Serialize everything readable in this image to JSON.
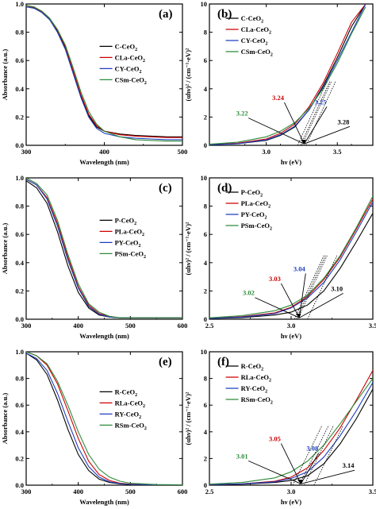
{
  "chart_data": [
    {
      "type": "line",
      "panel_label": "(a)",
      "xlabel": "Wavelength (nm)",
      "ylabel": "Absorbance (a.u.)",
      "xlim": [
        300,
        500
      ],
      "ylim": [
        0,
        1.0
      ],
      "xticks": [
        300,
        400,
        500
      ],
      "yticks": [
        0.0,
        0.2,
        0.4,
        0.6,
        0.8,
        1.0
      ],
      "legend_position": "middle-right",
      "series": [
        {
          "name": "C-CeO2",
          "name_base": "C-CeO",
          "name_sub": "2",
          "color": "#000000",
          "x": [
            300,
            310,
            320,
            330,
            340,
            350,
            360,
            370,
            380,
            390,
            400,
            420,
            440,
            460,
            480,
            500
          ],
          "y": [
            0.98,
            0.97,
            0.94,
            0.89,
            0.81,
            0.69,
            0.52,
            0.35,
            0.21,
            0.13,
            0.1,
            0.08,
            0.07,
            0.065,
            0.06,
            0.06
          ]
        },
        {
          "name": "CLa-CeO2",
          "name_base": "CLa-CeO",
          "name_sub": "2",
          "color": "#cc0000",
          "x": [
            300,
            310,
            320,
            330,
            340,
            350,
            360,
            370,
            380,
            390,
            400,
            420,
            440,
            460,
            480,
            500
          ],
          "y": [
            0.99,
            0.975,
            0.945,
            0.895,
            0.815,
            0.7,
            0.53,
            0.36,
            0.22,
            0.14,
            0.1,
            0.075,
            0.065,
            0.06,
            0.055,
            0.055
          ]
        },
        {
          "name": "CY-CeO2",
          "name_base": "CY-CeO",
          "name_sub": "2",
          "color": "#1f3fbf",
          "x": [
            300,
            310,
            320,
            330,
            340,
            350,
            360,
            370,
            380,
            390,
            400,
            420,
            440,
            460,
            480,
            500
          ],
          "y": [
            0.98,
            0.97,
            0.94,
            0.89,
            0.8,
            0.68,
            0.51,
            0.34,
            0.2,
            0.12,
            0.085,
            0.06,
            0.05,
            0.045,
            0.04,
            0.04
          ]
        },
        {
          "name": "CSm-CeO2",
          "name_base": "CSm-CeO",
          "name_sub": "2",
          "color": "#2e8b3a",
          "x": [
            300,
            310,
            320,
            330,
            340,
            350,
            360,
            370,
            380,
            390,
            400,
            420,
            440,
            460,
            480,
            500
          ],
          "y": [
            0.99,
            0.98,
            0.95,
            0.9,
            0.82,
            0.71,
            0.55,
            0.38,
            0.24,
            0.15,
            0.1,
            0.06,
            0.04,
            0.035,
            0.03,
            0.03
          ]
        }
      ]
    },
    {
      "type": "line",
      "panel_label": "(b)",
      "xlabel": "hν (eV)",
      "ylabel": "(αhν)² / (cm⁻¹·eV)²",
      "xlim": [
        2.6,
        3.75
      ],
      "ylim": [
        0,
        10
      ],
      "xticks": [
        3.0,
        3.5
      ],
      "yticks": [
        0,
        2,
        4,
        6,
        8,
        10
      ],
      "legend_position": "top-left",
      "annotations": [
        {
          "text": "3.22",
          "x": 3.22,
          "color": "#2e8b3a"
        },
        {
          "text": "3.24",
          "x": 3.24,
          "color": "#cc0000"
        },
        {
          "text": "3.25",
          "x": 3.25,
          "color": "#1f3fbf"
        },
        {
          "text": "3.28",
          "x": 3.28,
          "color": "#000000"
        }
      ],
      "series": [
        {
          "name": "C-CeO2",
          "name_base": "C-CeO",
          "name_sub": "2",
          "color": "#000000",
          "x": [
            2.6,
            2.8,
            3.0,
            3.1,
            3.2,
            3.3,
            3.4,
            3.5,
            3.6,
            3.7
          ],
          "y": [
            0.05,
            0.12,
            0.35,
            0.7,
            1.3,
            2.5,
            4.2,
            6.2,
            8.4,
            10
          ]
        },
        {
          "name": "CLa-CeO2",
          "name_base": "CLa-CeO",
          "name_sub": "2",
          "color": "#cc0000",
          "x": [
            2.6,
            2.8,
            3.0,
            3.1,
            3.2,
            3.3,
            3.4,
            3.5,
            3.6,
            3.7
          ],
          "y": [
            0.05,
            0.15,
            0.45,
            0.85,
            1.5,
            2.7,
            4.4,
            6.5,
            8.7,
            10
          ]
        },
        {
          "name": "CY-CeO2",
          "name_base": "CY-CeO",
          "name_sub": "2",
          "color": "#1f3fbf",
          "x": [
            2.6,
            2.8,
            3.0,
            3.1,
            3.2,
            3.3,
            3.4,
            3.5,
            3.6,
            3.7
          ],
          "y": [
            0.04,
            0.12,
            0.38,
            0.75,
            1.35,
            2.5,
            4.1,
            6.0,
            8.0,
            10
          ]
        },
        {
          "name": "CSm-CeO2",
          "name_base": "CSm-CeO",
          "name_sub": "2",
          "color": "#2e8b3a",
          "x": [
            2.6,
            2.8,
            3.0,
            3.1,
            3.2,
            3.3,
            3.4,
            3.5,
            3.6,
            3.7
          ],
          "y": [
            0.08,
            0.22,
            0.6,
            1.0,
            1.6,
            2.6,
            4.0,
            5.8,
            7.9,
            9.8
          ]
        }
      ]
    },
    {
      "type": "line",
      "panel_label": "(c)",
      "xlabel": "Wavelength (nm)",
      "ylabel": "Absorbance (a.u.)",
      "xlim": [
        300,
        600
      ],
      "ylim": [
        0,
        1.0
      ],
      "xticks": [
        300,
        400,
        500,
        600
      ],
      "yticks": [
        0.0,
        0.2,
        0.4,
        0.6,
        0.8,
        1.0
      ],
      "legend_position": "middle-right",
      "series": [
        {
          "name": "P-CeO2",
          "name_base": "P-CeO",
          "name_sub": "2",
          "color": "#000000",
          "x": [
            300,
            320,
            340,
            360,
            380,
            400,
            420,
            440,
            460,
            480,
            500,
            550,
            600
          ],
          "y": [
            0.98,
            0.93,
            0.82,
            0.62,
            0.38,
            0.19,
            0.08,
            0.03,
            0.015,
            0.01,
            0.01,
            0.01,
            0.01
          ]
        },
        {
          "name": "PLa-CeO2",
          "name_base": "PLa-CeO",
          "name_sub": "2",
          "color": "#cc0000",
          "x": [
            300,
            320,
            340,
            360,
            380,
            400,
            420,
            440,
            460,
            480,
            500,
            550,
            600
          ],
          "y": [
            0.99,
            0.95,
            0.86,
            0.68,
            0.44,
            0.23,
            0.1,
            0.04,
            0.02,
            0.01,
            0.01,
            0.01,
            0.01
          ]
        },
        {
          "name": "PY-CeO2",
          "name_base": "PY-CeO",
          "name_sub": "2",
          "color": "#1f3fbf",
          "x": [
            300,
            320,
            340,
            360,
            380,
            400,
            420,
            440,
            460,
            480,
            500,
            550,
            600
          ],
          "y": [
            0.99,
            0.95,
            0.85,
            0.66,
            0.42,
            0.22,
            0.09,
            0.035,
            0.015,
            0.01,
            0.01,
            0.01,
            0.01
          ]
        },
        {
          "name": "PSm-CeO2",
          "name_base": "PSm-CeO",
          "name_sub": "2",
          "color": "#2e8b3a",
          "x": [
            300,
            320,
            340,
            360,
            380,
            400,
            420,
            440,
            460,
            480,
            500,
            550,
            600
          ],
          "y": [
            1.0,
            0.96,
            0.88,
            0.7,
            0.46,
            0.25,
            0.11,
            0.05,
            0.02,
            0.01,
            0.01,
            0.01,
            0.01
          ]
        }
      ]
    },
    {
      "type": "line",
      "panel_label": "(d)",
      "xlabel": "hν (eV)",
      "ylabel": "(αhν)² / (cm⁻¹·eV)²",
      "xlim": [
        2.5,
        3.5
      ],
      "ylim": [
        0,
        10
      ],
      "xticks": [
        2.5,
        3.0,
        3.5
      ],
      "yticks": [
        0,
        2,
        4,
        6,
        8,
        10
      ],
      "legend_position": "top-left",
      "annotations": [
        {
          "text": "3.02",
          "x": 3.02,
          "color": "#2e8b3a"
        },
        {
          "text": "3.03",
          "x": 3.03,
          "color": "#cc0000"
        },
        {
          "text": "3.04",
          "x": 3.04,
          "color": "#1f3fbf"
        },
        {
          "text": "3.10",
          "x": 3.1,
          "color": "#000000"
        }
      ],
      "series": [
        {
          "name": "P-CeO2",
          "name_base": "P-CeO",
          "name_sub": "2",
          "color": "#000000",
          "x": [
            2.5,
            2.7,
            2.9,
            3.0,
            3.1,
            3.2,
            3.3,
            3.4,
            3.5
          ],
          "y": [
            0.05,
            0.12,
            0.3,
            0.5,
            1.0,
            2.0,
            3.6,
            5.5,
            7.5
          ]
        },
        {
          "name": "PLa-CeO2",
          "name_base": "PLa-CeO",
          "name_sub": "2",
          "color": "#cc0000",
          "x": [
            2.5,
            2.7,
            2.9,
            3.0,
            3.1,
            3.2,
            3.3,
            3.4,
            3.5
          ],
          "y": [
            0.06,
            0.18,
            0.45,
            0.85,
            1.6,
            2.8,
            4.4,
            6.4,
            8.5
          ]
        },
        {
          "name": "PY-CeO2",
          "name_base": "PY-CeO",
          "name_sub": "2",
          "color": "#1f3fbf",
          "x": [
            2.5,
            2.7,
            2.9,
            3.0,
            3.1,
            3.2,
            3.3,
            3.4,
            3.5
          ],
          "y": [
            0.05,
            0.15,
            0.4,
            0.8,
            1.5,
            2.6,
            4.2,
            6.2,
            8.3
          ]
        },
        {
          "name": "PSm-CeO2",
          "name_base": "PSm-CeO",
          "name_sub": "2",
          "color": "#2e8b3a",
          "x": [
            2.5,
            2.7,
            2.9,
            3.0,
            3.1,
            3.2,
            3.3,
            3.4,
            3.5
          ],
          "y": [
            0.1,
            0.25,
            0.6,
            1.0,
            1.7,
            2.9,
            4.5,
            6.5,
            8.7
          ]
        }
      ]
    },
    {
      "type": "line",
      "panel_label": "(e)",
      "xlabel": "Wavelength (nm)",
      "ylabel": "Absorbance (a.u.)",
      "xlim": [
        300,
        600
      ],
      "ylim": [
        0,
        1.0
      ],
      "xticks": [
        300,
        400,
        500,
        600
      ],
      "yticks": [
        0.0,
        0.2,
        0.4,
        0.6,
        0.8,
        1.0
      ],
      "legend_position": "middle-right",
      "series": [
        {
          "name": "R-CeO2",
          "name_base": "R-CeO",
          "name_sub": "2",
          "color": "#000000",
          "x": [
            300,
            320,
            340,
            360,
            380,
            400,
            420,
            440,
            460,
            480,
            500,
            550,
            600
          ],
          "y": [
            0.99,
            0.94,
            0.83,
            0.64,
            0.42,
            0.23,
            0.11,
            0.045,
            0.02,
            0.01,
            0.005,
            0.003,
            0.003
          ]
        },
        {
          "name": "RLa-CeO2",
          "name_base": "RLa-CeO",
          "name_sub": "2",
          "color": "#cc0000",
          "x": [
            300,
            320,
            340,
            360,
            380,
            400,
            420,
            440,
            460,
            480,
            500,
            550,
            600
          ],
          "y": [
            1.0,
            0.97,
            0.9,
            0.76,
            0.56,
            0.35,
            0.18,
            0.08,
            0.035,
            0.015,
            0.008,
            0.003,
            0.003
          ]
        },
        {
          "name": "RY-CeO2",
          "name_base": "RY-CeO",
          "name_sub": "2",
          "color": "#1f3fbf",
          "x": [
            300,
            320,
            340,
            360,
            380,
            400,
            420,
            440,
            460,
            480,
            500,
            550,
            600
          ],
          "y": [
            0.99,
            0.95,
            0.86,
            0.69,
            0.48,
            0.28,
            0.14,
            0.06,
            0.025,
            0.012,
            0.006,
            0.003,
            0.003
          ]
        },
        {
          "name": "RSm-CeO2",
          "name_base": "RSm-CeO",
          "name_sub": "2",
          "color": "#2e8b3a",
          "x": [
            300,
            320,
            340,
            360,
            380,
            400,
            420,
            440,
            460,
            480,
            500,
            550,
            600
          ],
          "y": [
            1.0,
            0.97,
            0.91,
            0.78,
            0.6,
            0.4,
            0.23,
            0.12,
            0.06,
            0.03,
            0.015,
            0.005,
            0.003
          ]
        }
      ]
    },
    {
      "type": "line",
      "panel_label": "(f)",
      "xlabel": "hν (eV)",
      "ylabel": "(αhν)² / (cm⁻¹·eV)²",
      "xlim": [
        2.5,
        3.5
      ],
      "ylim": [
        0,
        10
      ],
      "xticks": [
        2.5,
        3.0,
        3.5
      ],
      "yticks": [
        0,
        2,
        4,
        6,
        8,
        10
      ],
      "legend_position": "top-left",
      "annotations": [
        {
          "text": "3.01",
          "x": 3.01,
          "color": "#2e8b3a"
        },
        {
          "text": "3.05",
          "x": 3.05,
          "color": "#cc0000"
        },
        {
          "text": "3.08",
          "x": 3.08,
          "color": "#1f3fbf"
        },
        {
          "text": "3.14",
          "x": 3.14,
          "color": "#000000"
        }
      ],
      "series": [
        {
          "name": "R-CeO2",
          "name_base": "R-CeO",
          "name_sub": "2",
          "color": "#000000",
          "x": [
            2.5,
            2.7,
            2.9,
            3.0,
            3.1,
            3.2,
            3.3,
            3.4,
            3.5
          ],
          "y": [
            0.03,
            0.08,
            0.2,
            0.35,
            0.7,
            1.6,
            3.1,
            5.0,
            7.2
          ]
        },
        {
          "name": "RLa-CeO2",
          "name_base": "RLa-CeO",
          "name_sub": "2",
          "color": "#cc0000",
          "x": [
            2.5,
            2.7,
            2.9,
            3.0,
            3.1,
            3.2,
            3.3,
            3.4,
            3.5
          ],
          "y": [
            0.04,
            0.1,
            0.3,
            0.6,
            1.3,
            2.6,
            4.3,
            6.4,
            8.6
          ]
        },
        {
          "name": "RY-CeO2",
          "name_base": "RY-CeO",
          "name_sub": "2",
          "color": "#1f3fbf",
          "x": [
            2.5,
            2.7,
            2.9,
            3.0,
            3.1,
            3.2,
            3.3,
            3.4,
            3.5
          ],
          "y": [
            0.04,
            0.1,
            0.25,
            0.5,
            1.0,
            2.1,
            3.7,
            5.6,
            7.7
          ]
        },
        {
          "name": "RSm-CeO2",
          "name_base": "RSm-CeO",
          "name_sub": "2",
          "color": "#2e8b3a",
          "x": [
            2.5,
            2.7,
            2.9,
            3.0,
            3.1,
            3.2,
            3.3,
            3.4,
            3.5
          ],
          "y": [
            0.08,
            0.2,
            0.55,
            1.0,
            1.8,
            3.0,
            4.6,
            6.3,
            8.0
          ]
        }
      ]
    }
  ]
}
